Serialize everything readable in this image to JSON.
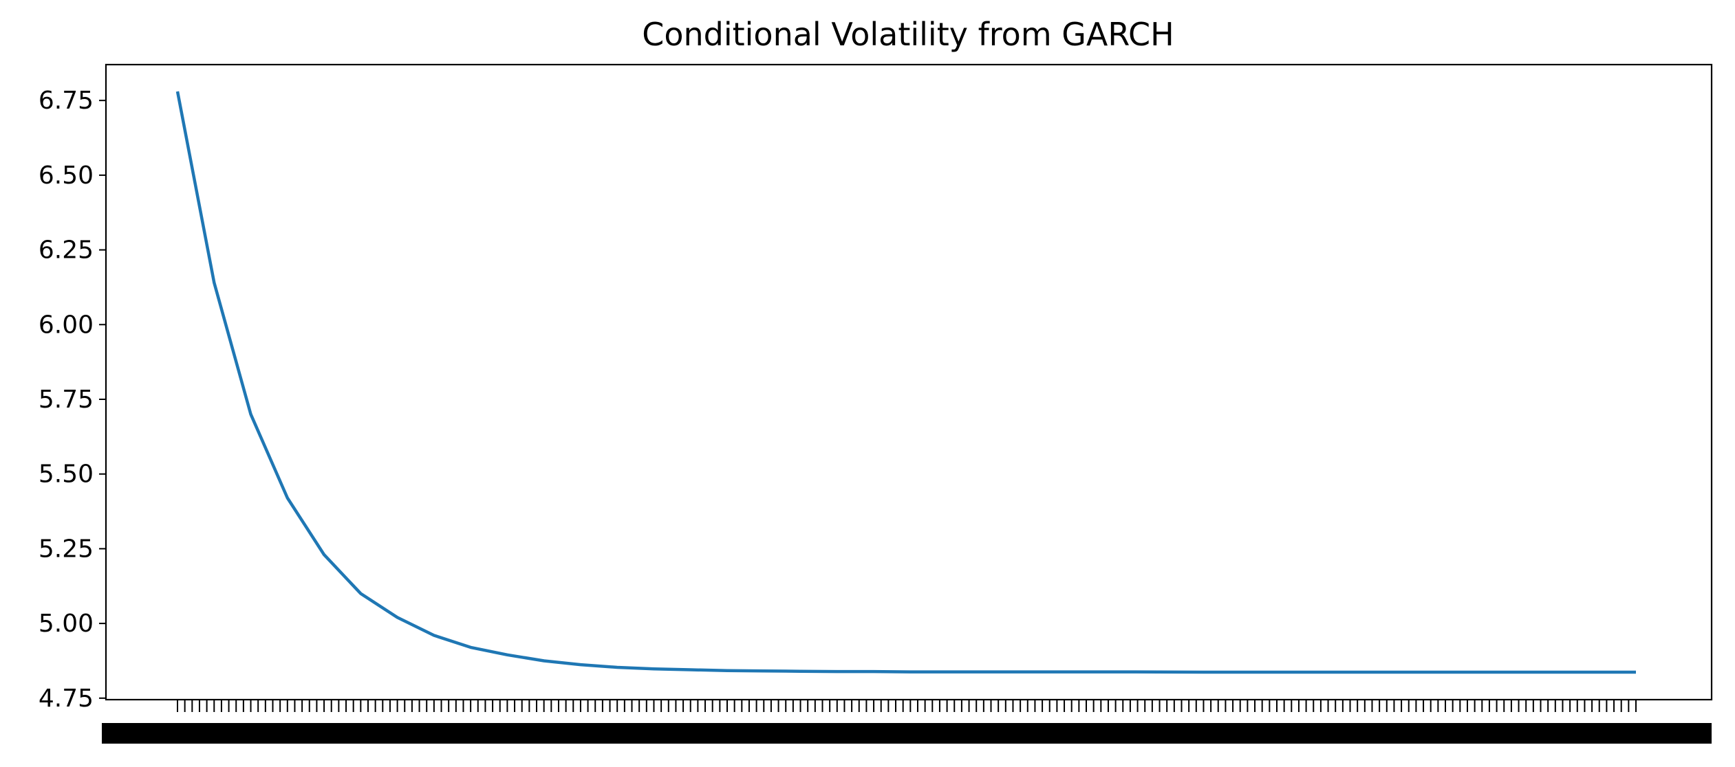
{
  "chart_data": {
    "type": "line",
    "title": "Conditional Volatility from GARCH",
    "xlabel": "",
    "ylabel": "",
    "ylim": [
      4.745,
      6.87
    ],
    "yticks": [
      4.75,
      5.0,
      5.25,
      5.5,
      5.75,
      6.0,
      6.25,
      6.5,
      6.75
    ],
    "ytick_labels": [
      "4.75",
      "5.00",
      "5.25",
      "5.50",
      "5.75",
      "6.00",
      "6.25",
      "6.50",
      "6.75"
    ],
    "x_tick_labels_note": "x tick labels are densely overlapping and illegible",
    "x_tick_count": 200,
    "grid": false,
    "series": [
      {
        "color": "#1f77b4",
        "x": [
          0,
          5,
          10,
          15,
          20,
          25,
          30,
          35,
          40,
          45,
          50,
          55,
          60,
          65,
          70,
          75,
          80,
          85,
          90,
          95,
          100,
          110,
          120,
          130,
          140,
          150,
          160,
          170,
          180,
          190,
          199
        ],
        "values": [
          6.78,
          6.14,
          5.7,
          5.42,
          5.23,
          5.1,
          5.02,
          4.96,
          4.92,
          4.895,
          4.875,
          4.862,
          4.853,
          4.848,
          4.845,
          4.842,
          4.841,
          4.84,
          4.839,
          4.839,
          4.838,
          4.838,
          4.838,
          4.838,
          4.837,
          4.837,
          4.837,
          4.837,
          4.837,
          4.837,
          4.837
        ]
      }
    ]
  }
}
